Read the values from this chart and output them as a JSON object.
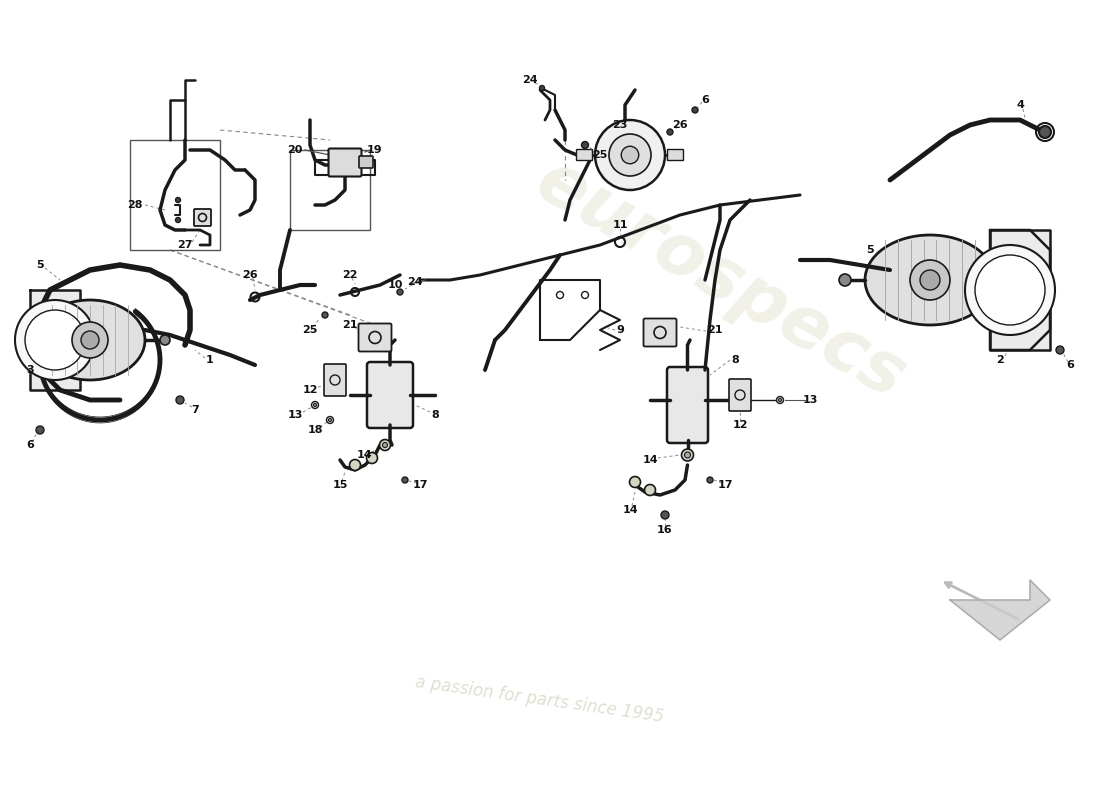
{
  "background_color": "#ffffff",
  "line_color": "#1a1a1a",
  "dashed_color": "#888888",
  "label_color": "#111111",
  "watermark_text": "eurospecs",
  "watermark_subtext": "a passion for parts since 1995",
  "fig_width": 11.0,
  "fig_height": 8.0,
  "dpi": 100
}
